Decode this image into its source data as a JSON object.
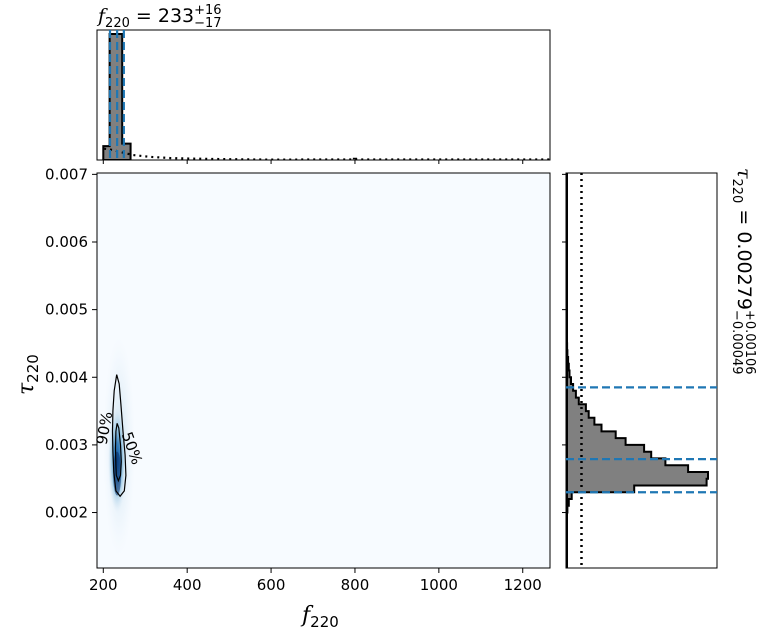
{
  "chart_data": [
    {
      "type": "heatmap",
      "name": "joint-posterior",
      "xlabel": "f",
      "xlabel_sub": "220",
      "ylabel": "τ",
      "ylabel_sub": "220",
      "xlim": [
        185,
        1265
      ],
      "ylim": [
        0.00118,
        0.00702
      ],
      "xticks": [
        200,
        400,
        600,
        800,
        1000,
        1200
      ],
      "xtick_labels": [
        "200",
        "400",
        "600",
        "800",
        "1000",
        "1200"
      ],
      "yticks": [
        0.002,
        0.003,
        0.004,
        0.005,
        0.006,
        0.007
      ],
      "ytick_labels": [
        "0.002",
        "0.003",
        "0.004",
        "0.005",
        "0.006",
        "0.007"
      ],
      "colormap": "Blues",
      "density_peak": {
        "x": 233,
        "y": 0.00265
      },
      "contours": [
        {
          "label": "90%",
          "points": [
            [
              225,
              0.0026
            ],
            [
              223,
              0.0029
            ],
            [
              222,
              0.0032
            ],
            [
              223,
              0.0035
            ],
            [
              226,
              0.0038
            ],
            [
              232,
              0.00404
            ],
            [
              238,
              0.0039
            ],
            [
              242,
              0.0036
            ],
            [
              247,
              0.0032
            ],
            [
              252,
              0.00285
            ],
            [
              254,
              0.00255
            ],
            [
              250,
              0.00232
            ],
            [
              240,
              0.00224
            ],
            [
              230,
              0.00232
            ],
            [
              225,
              0.0026
            ]
          ]
        },
        {
          "label": "50%",
          "points": [
            [
              230,
              0.0027
            ],
            [
              229,
              0.00295
            ],
            [
              230,
              0.0032
            ],
            [
              233,
              0.00332
            ],
            [
              237,
              0.00325
            ],
            [
              241,
              0.003
            ],
            [
              243,
              0.00275
            ],
            [
              241,
              0.00255
            ],
            [
              236,
              0.00247
            ],
            [
              231,
              0.00255
            ],
            [
              230,
              0.0027
            ]
          ]
        }
      ],
      "contour_labels": [
        "90%",
        "50%"
      ]
    },
    {
      "type": "bar",
      "name": "f220-marginal",
      "title_main": "f",
      "title_sub": "220",
      "title_value": "233",
      "title_plus": "+16",
      "title_minus": "−17",
      "bins": [
        [
          200,
          215,
          0.11
        ],
        [
          215,
          230,
          1.0
        ],
        [
          230,
          245,
          1.0
        ],
        [
          245,
          265,
          0.13
        ]
      ],
      "quantile_lines": [
        216,
        233,
        249
      ],
      "prior": [
        [
          202,
          0.09
        ],
        [
          215,
          0.085
        ],
        [
          245,
          0.06
        ],
        [
          270,
          0.04
        ],
        [
          310,
          0.025
        ],
        [
          360,
          0.015
        ],
        [
          420,
          0.01
        ],
        [
          500,
          0.006
        ],
        [
          600,
          0.003
        ],
        [
          700,
          0.0015
        ],
        [
          800,
          0.001
        ],
        [
          900,
          0.0005
        ],
        [
          1000,
          0.0003
        ],
        [
          1265,
          0.0001
        ]
      ],
      "prior_visible_until": 640
    },
    {
      "type": "bar",
      "orientation": "horizontal",
      "name": "tau220-marginal",
      "title_main": "τ",
      "title_sub": "220",
      "title_value": "0.00279",
      "title_plus": "+0.00106",
      "title_minus": "−0.00049",
      "bins": [
        [
          0.002,
          0.0021,
          0.01
        ],
        [
          0.0021,
          0.0022,
          0.02
        ],
        [
          0.0022,
          0.0023,
          0.04
        ],
        [
          0.0023,
          0.0024,
          0.48
        ],
        [
          0.0024,
          0.0025,
          0.99
        ],
        [
          0.0025,
          0.0026,
          1.0
        ],
        [
          0.0026,
          0.0027,
          0.86
        ],
        [
          0.0027,
          0.0028,
          0.7
        ],
        [
          0.0028,
          0.0029,
          0.6
        ],
        [
          0.0029,
          0.003,
          0.55
        ],
        [
          0.003,
          0.0031,
          0.42
        ],
        [
          0.0031,
          0.0032,
          0.35
        ],
        [
          0.0032,
          0.0033,
          0.25
        ],
        [
          0.0033,
          0.0034,
          0.2
        ],
        [
          0.0034,
          0.0035,
          0.16
        ],
        [
          0.0035,
          0.0036,
          0.14
        ],
        [
          0.0036,
          0.0037,
          0.09
        ],
        [
          0.0037,
          0.0038,
          0.07
        ],
        [
          0.0038,
          0.0039,
          0.05
        ],
        [
          0.0039,
          0.004,
          0.035
        ],
        [
          0.004,
          0.0041,
          0.025
        ],
        [
          0.0041,
          0.0042,
          0.02
        ],
        [
          0.0042,
          0.0043,
          0.015
        ],
        [
          0.0043,
          0.0044,
          0.01
        ],
        [
          0.0044,
          0.0045,
          0.008
        ],
        [
          0.0045,
          0.0046,
          0.005
        ]
      ],
      "quantile_lines": [
        0.0023,
        0.00279,
        0.00385
      ],
      "prior_value": 0.095
    }
  ]
}
